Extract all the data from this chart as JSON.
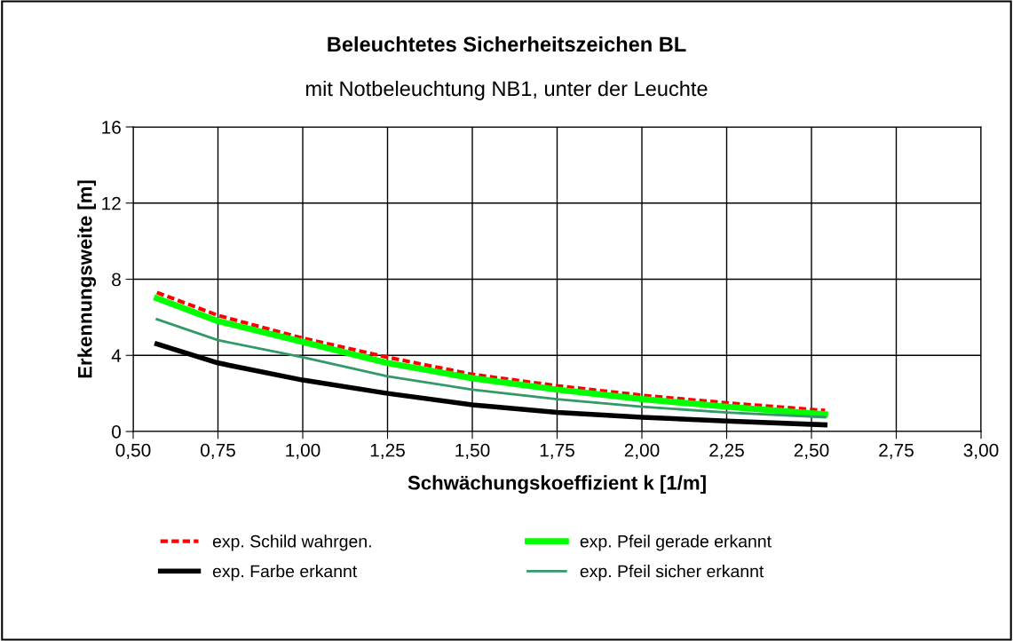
{
  "chart_data": {
    "type": "line",
    "title": "Beleuchtetes Sicherheitszeichen BL",
    "subtitle": "mit Notbeleuchtung NB1, unter der Leuchte",
    "xlabel": "Schwächungskoeffizient k [1/m]",
    "ylabel": "Erkennungsweite [m]",
    "x": [
      0.57,
      0.75,
      1.0,
      1.25,
      1.5,
      1.75,
      2.0,
      2.25,
      2.54
    ],
    "series": [
      {
        "name": "exp. Schild wahrgen.",
        "color": "#ff0000",
        "line_style": "dashed",
        "values": [
          7.3,
          6.1,
          4.9,
          3.9,
          3.0,
          2.4,
          1.9,
          1.5,
          1.1
        ]
      },
      {
        "name": "exp. Farbe erkannt",
        "color": "#000000",
        "values": [
          4.6,
          3.6,
          2.7,
          2.0,
          1.4,
          1.0,
          0.75,
          0.55,
          0.35
        ]
      },
      {
        "name": "exp. Pfeil gerade erkannt",
        "color": "#00ff00",
        "values": [
          7.0,
          5.8,
          4.7,
          3.6,
          2.8,
          2.2,
          1.7,
          1.3,
          0.9
        ]
      },
      {
        "name": "exp. Pfeil sicher erkannt",
        "color": "#339966",
        "values": [
          5.9,
          4.8,
          3.9,
          2.9,
          2.2,
          1.7,
          1.3,
          1.0,
          0.75
        ]
      }
    ],
    "xlim": [
      0.5,
      3.0
    ],
    "ylim": [
      0,
      16
    ],
    "xticks": [
      {
        "value": 0.5,
        "label": "0,50"
      },
      {
        "value": 0.75,
        "label": "0,75"
      },
      {
        "value": 1.0,
        "label": "1,00"
      },
      {
        "value": 1.25,
        "label": "1,25"
      },
      {
        "value": 1.5,
        "label": "1,50"
      },
      {
        "value": 1.75,
        "label": "1,75"
      },
      {
        "value": 2.0,
        "label": "2,00"
      },
      {
        "value": 2.25,
        "label": "2,25"
      },
      {
        "value": 2.5,
        "label": "2,50"
      },
      {
        "value": 2.75,
        "label": "2,75"
      },
      {
        "value": 3.0,
        "label": "3,00"
      }
    ],
    "yticks": [
      0,
      4,
      8,
      12,
      16
    ],
    "grid": true,
    "legend": "bottom",
    "marker": "none",
    "line_style": "solid"
  }
}
